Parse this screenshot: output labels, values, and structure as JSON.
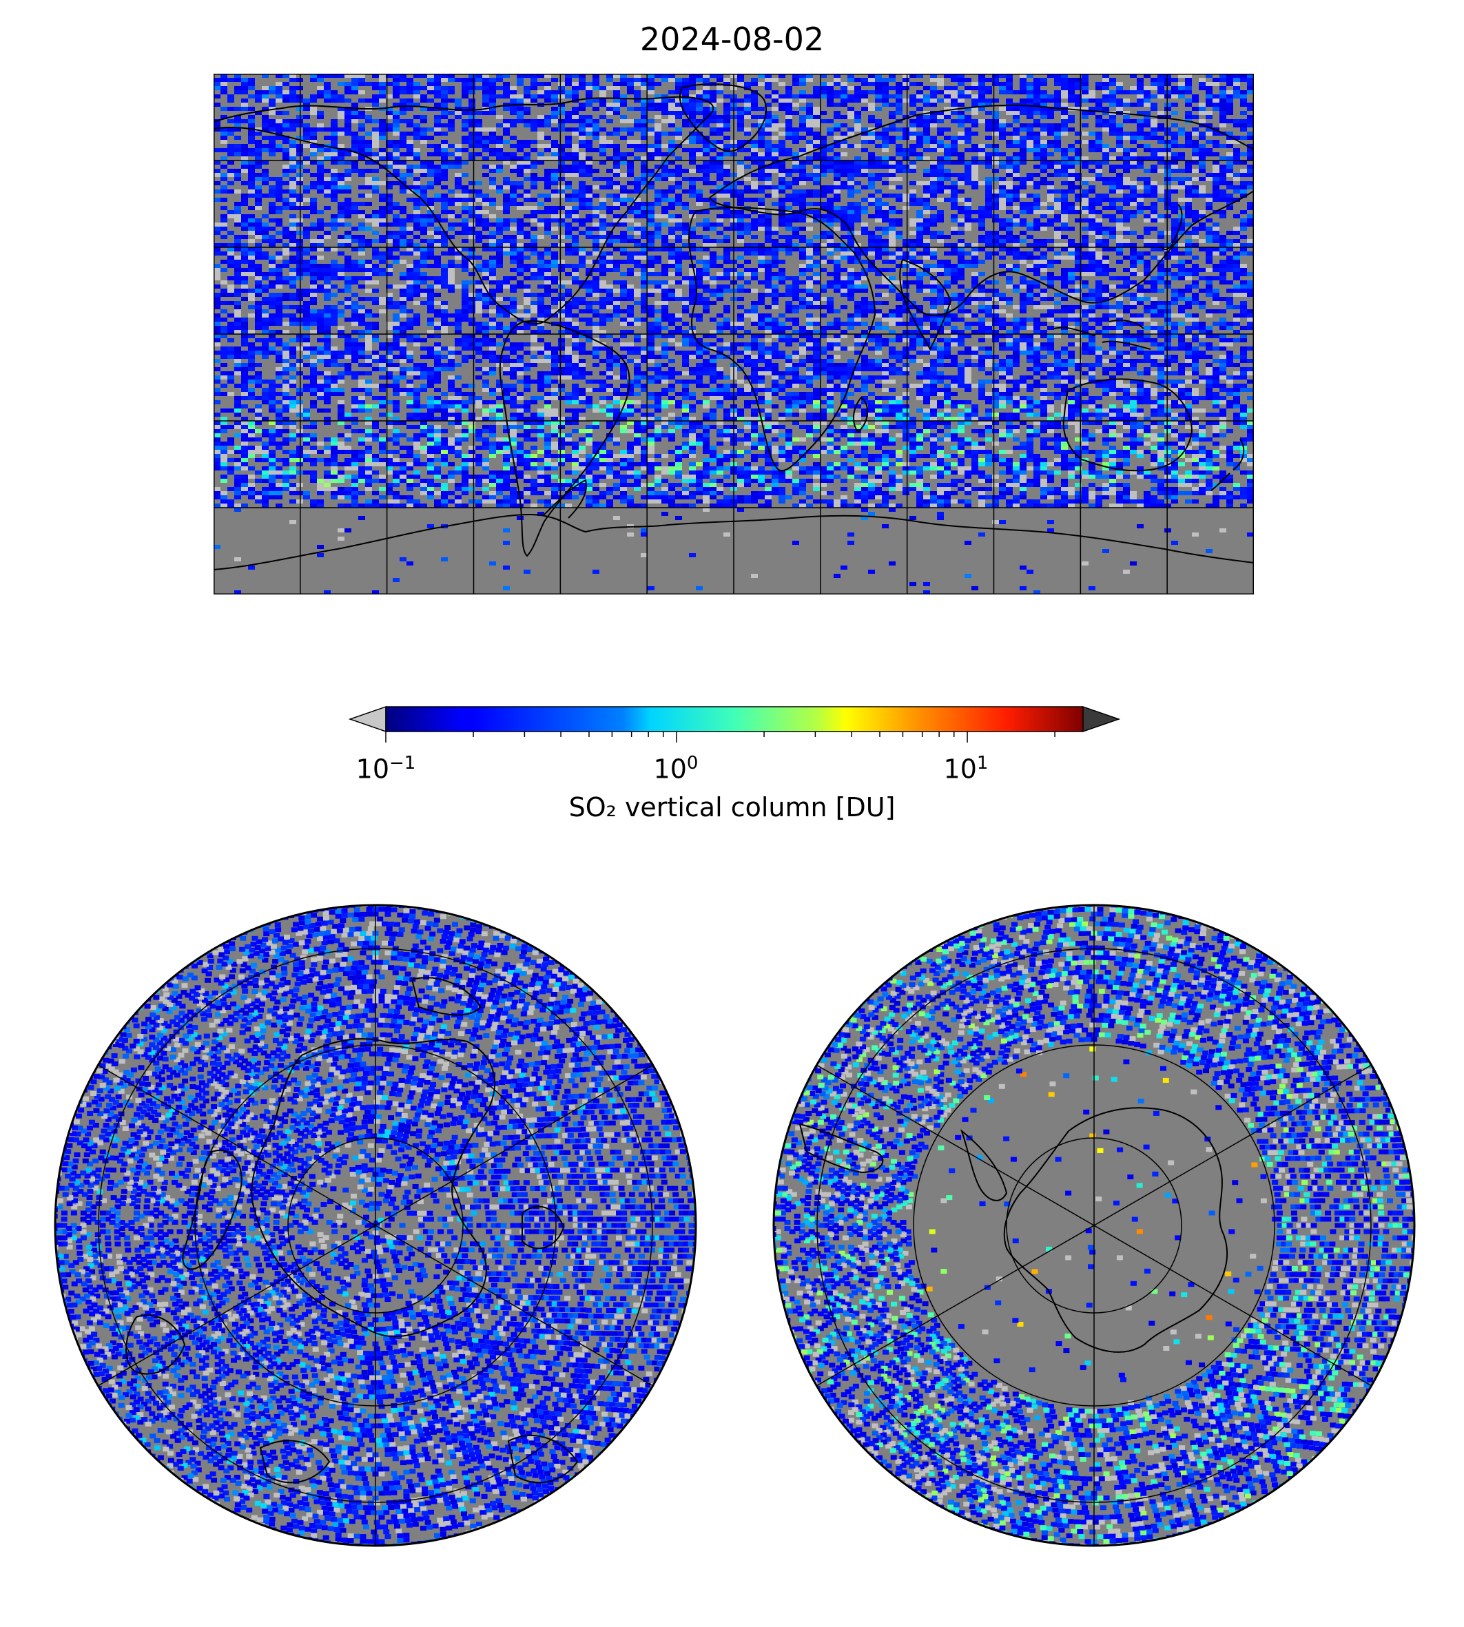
{
  "title": "2024-08-02",
  "colorbar": {
    "label": "SO₂ vertical column [DU]",
    "scale": "log",
    "range": [
      0.1,
      25
    ],
    "colormap": "jet",
    "ticks": [
      {
        "base": "10",
        "exp": "−1",
        "value": 0.1
      },
      {
        "base": "10",
        "exp": "0",
        "value": 1
      },
      {
        "base": "10",
        "exp": "1",
        "value": 10
      }
    ],
    "under_color": "#c8c8c8",
    "over_color": "#3a3a3a"
  },
  "maps": {
    "background_color": "#808080",
    "no_data_color": "#c0c0c0",
    "world": {
      "projection": "plate-carree",
      "gridlines": true,
      "coastlines": true
    },
    "north": {
      "projection": "north-polar-stereographic",
      "gridlines": true,
      "coastlines": true
    },
    "south": {
      "projection": "south-polar-stereographic",
      "gridlines": true,
      "coastlines": true
    }
  }
}
